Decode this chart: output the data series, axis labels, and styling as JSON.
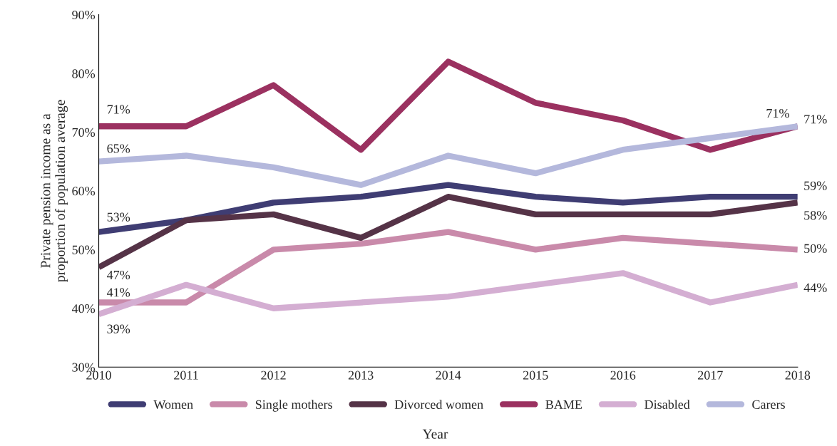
{
  "chart_data": {
    "type": "line",
    "xlabel": "Year",
    "ylabel": "Private pension income as a\nproportion of population average",
    "x": [
      2010,
      2011,
      2012,
      2013,
      2014,
      2015,
      2016,
      2017,
      2018
    ],
    "xlim": [
      2010,
      2018
    ],
    "xticks": [
      2010,
      2011,
      2012,
      2013,
      2014,
      2015,
      2016,
      2017,
      2018
    ],
    "ylim": [
      30,
      90
    ],
    "yticks": [
      {
        "value": 30,
        "label": "30%"
      },
      {
        "value": 40,
        "label": "40%"
      },
      {
        "value": 50,
        "label": "50%"
      },
      {
        "value": 60,
        "label": "60%"
      },
      {
        "value": 70,
        "label": "70%"
      },
      {
        "value": 80,
        "label": "80%"
      },
      {
        "value": 90,
        "label": "90%"
      }
    ],
    "grid": false,
    "legend": "bottom",
    "marker": "none",
    "line_style": "solid",
    "series": [
      {
        "name": "Women",
        "color": "#3f3d73",
        "values": [
          53,
          55,
          58,
          59,
          61,
          59,
          58,
          59,
          59
        ],
        "value_labels": [
          "53%",
          null,
          null,
          null,
          null,
          null,
          null,
          null,
          "59%"
        ]
      },
      {
        "name": "Single mothers",
        "color": "#c98aaa",
        "values": [
          41,
          41,
          50,
          51,
          53,
          50,
          52,
          51,
          50
        ],
        "value_labels": [
          "41%",
          null,
          null,
          null,
          null,
          null,
          null,
          null,
          "50%"
        ]
      },
      {
        "name": "Divorced women",
        "color": "#553347",
        "values": [
          47,
          55,
          56,
          52,
          59,
          56,
          56,
          56,
          58
        ],
        "value_labels": [
          "47%",
          null,
          null,
          null,
          null,
          null,
          null,
          null,
          "58%"
        ]
      },
      {
        "name": "BAME",
        "color": "#9b3160",
        "values": [
          71,
          71,
          78,
          67,
          82,
          75,
          72,
          67,
          71
        ],
        "value_labels": [
          "71%",
          null,
          null,
          null,
          null,
          null,
          null,
          null,
          "71%"
        ]
      },
      {
        "name": "Disabled",
        "color": "#d4aed2",
        "values": [
          39,
          44,
          40,
          41,
          42,
          44,
          46,
          41,
          44
        ],
        "value_labels": [
          "39%",
          null,
          null,
          null,
          null,
          null,
          null,
          null,
          "44%"
        ]
      },
      {
        "name": "Carers",
        "color": "#b4b8dc",
        "values": [
          65,
          66,
          64,
          61,
          66,
          63,
          67,
          69,
          71
        ],
        "value_labels": [
          "65%",
          null,
          null,
          null,
          null,
          null,
          null,
          null,
          "71%"
        ]
      }
    ]
  }
}
